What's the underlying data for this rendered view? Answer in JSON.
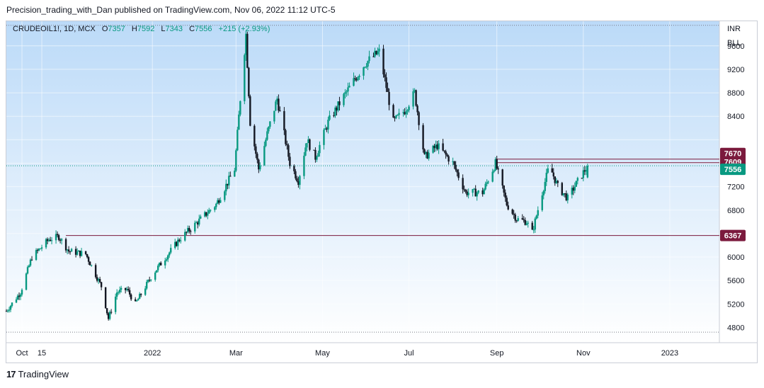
{
  "header": {
    "publisher_line": "Precision_trading_with_Dan published on TradingView.com, Nov 06, 2022 11:12 UTC-5"
  },
  "legend": {
    "symbol": "CRUDEOIL1!, 1D, MCX",
    "o_label": "O",
    "o_value": "7357",
    "h_label": "H",
    "h_value": "7592",
    "l_label": "L",
    "l_value": "7343",
    "c_label": "C",
    "c_value": "7556",
    "change": "+215 (+2.93%)"
  },
  "footer": {
    "logo": "17",
    "brand": "TradingView"
  },
  "colors": {
    "up": "#089981",
    "down": "#131722",
    "level": "#7b1a3d",
    "current": "#089981"
  },
  "chart_data": {
    "type": "candlestick",
    "currency": "INR",
    "unit": "BLL",
    "y_ticks": [
      4800,
      5200,
      5600,
      6000,
      6400,
      6800,
      7200,
      7600,
      8000,
      8400,
      8800,
      9200,
      9600
    ],
    "y_tick_labels": [
      "4800",
      "5200",
      "5600",
      "6000",
      "6400",
      "6800",
      "7200",
      "",
      "",
      "8400",
      "8800",
      "9200",
      "9600"
    ],
    "ylim": [
      4540,
      10020
    ],
    "x_labels": [
      "Oct",
      "15",
      "2022",
      "Mar",
      "May",
      "Jul",
      "Sep",
      "Nov",
      "2023"
    ],
    "x_label_dates": [
      "2021-10-01",
      "2021-10-15",
      "2022-01-01",
      "2022-03-01",
      "2022-05-01",
      "2022-07-01",
      "2022-09-01",
      "2022-11-01",
      "2023-01-01"
    ],
    "x_range": [
      "2021-09-20",
      "2023-02-05"
    ],
    "price_levels": [
      {
        "value": 7670,
        "label": "7670",
        "style": "line"
      },
      {
        "value": 7609,
        "label": "7609",
        "style": "line"
      },
      {
        "value": 6367,
        "label": "6367",
        "style": "line"
      },
      {
        "value": 7556,
        "label": "7556",
        "style": "dotted-current"
      },
      {
        "value": 9950,
        "label": "",
        "style": "dotted"
      },
      {
        "value": 4720,
        "label": "",
        "style": "dotted"
      }
    ],
    "anchors": [
      [
        "2021-09-20",
        5080
      ],
      [
        "2021-09-30",
        5400
      ],
      [
        "2021-10-08",
        6000
      ],
      [
        "2021-10-20",
        6300
      ],
      [
        "2021-10-27",
        6350
      ],
      [
        "2021-11-03",
        6100
      ],
      [
        "2021-11-15",
        6050
      ],
      [
        "2021-11-26",
        5500
      ],
      [
        "2021-12-01",
        4950
      ],
      [
        "2021-12-07",
        5400
      ],
      [
        "2021-12-14",
        5450
      ],
      [
        "2021-12-20",
        5200
      ],
      [
        "2022-01-01",
        5700
      ],
      [
        "2022-01-20",
        6300
      ],
      [
        "2022-02-15",
        6900
      ],
      [
        "2022-02-28",
        7500
      ],
      [
        "2022-03-04",
        8700
      ],
      [
        "2022-03-08",
        9800
      ],
      [
        "2022-03-11",
        8300
      ],
      [
        "2022-03-17",
        7500
      ],
      [
        "2022-03-23",
        8100
      ],
      [
        "2022-03-30",
        8700
      ],
      [
        "2022-04-08",
        7600
      ],
      [
        "2022-04-14",
        7300
      ],
      [
        "2022-04-20",
        8000
      ],
      [
        "2022-04-26",
        7700
      ],
      [
        "2022-05-05",
        8300
      ],
      [
        "2022-05-15",
        8700
      ],
      [
        "2022-05-31",
        9300
      ],
      [
        "2022-06-10",
        9500
      ],
      [
        "2022-06-20",
        8300
      ],
      [
        "2022-06-28",
        8500
      ],
      [
        "2022-07-05",
        8800
      ],
      [
        "2022-07-12",
        7700
      ],
      [
        "2022-07-21",
        7900
      ],
      [
        "2022-08-01",
        7600
      ],
      [
        "2022-08-10",
        7100
      ],
      [
        "2022-08-22",
        7100
      ],
      [
        "2022-08-31",
        7600
      ],
      [
        "2022-09-08",
        6900
      ],
      [
        "2022-09-15",
        6650
      ],
      [
        "2022-09-22",
        6600
      ],
      [
        "2022-09-26",
        6420
      ],
      [
        "2022-10-03",
        7100
      ],
      [
        "2022-10-08",
        7560
      ],
      [
        "2022-10-14",
        7200
      ],
      [
        "2022-10-21",
        7000
      ],
      [
        "2022-10-27",
        7250
      ],
      [
        "2022-11-04",
        7556
      ]
    ]
  }
}
